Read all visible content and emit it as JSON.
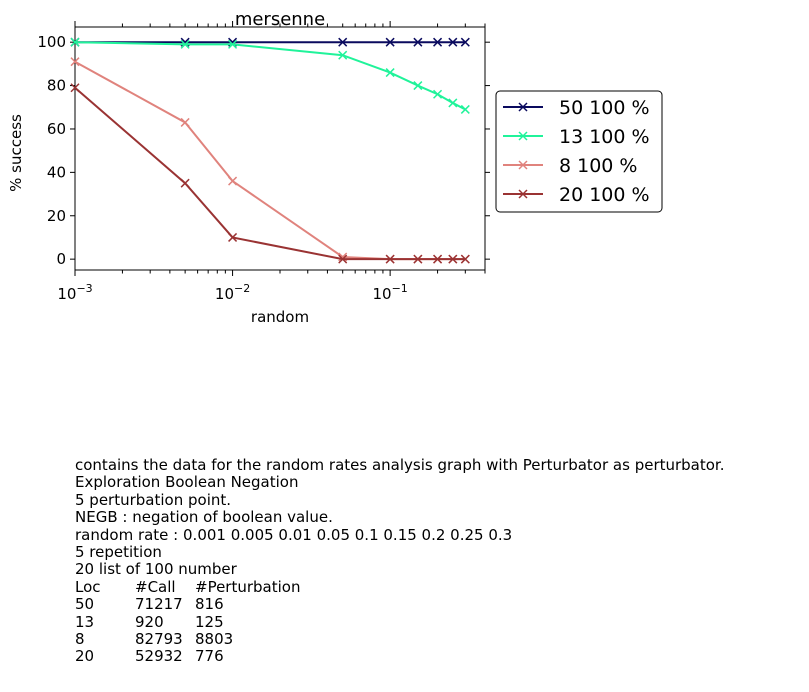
{
  "chart_data": {
    "type": "line",
    "title": "mersenne",
    "xlabel": "random",
    "ylabel": "% success",
    "xscale": "log",
    "xlim": [
      0.001,
      0.4
    ],
    "ylim": [
      -5,
      107
    ],
    "yticks": [
      0,
      20,
      40,
      60,
      80,
      100
    ],
    "xtick_labels": [
      {
        "value": 0.001,
        "base": "10",
        "exp": "−3"
      },
      {
        "value": 0.01,
        "base": "10",
        "exp": "−2"
      },
      {
        "value": 0.1,
        "base": "10",
        "exp": "−1"
      }
    ],
    "x": [
      0.001,
      0.005,
      0.01,
      0.05,
      0.1,
      0.15,
      0.2,
      0.25,
      0.3
    ],
    "series": [
      {
        "name": "50 100 %",
        "color": "#0a0a5e",
        "values": [
          100,
          100,
          100,
          100,
          100,
          100,
          100,
          100,
          100
        ]
      },
      {
        "name": "13 100 %",
        "color": "#20f39a",
        "values": [
          100,
          99,
          99,
          94,
          86,
          80,
          76,
          72,
          69
        ]
      },
      {
        "name": "8 100 %",
        "color": "#e0837d",
        "values": [
          91,
          63,
          36,
          1,
          0,
          0,
          0,
          0,
          0
        ]
      },
      {
        "name": "20 100 %",
        "color": "#9a3333",
        "values": [
          79,
          35,
          10,
          0,
          0,
          0,
          0,
          0,
          0
        ]
      }
    ],
    "legend_position": "right-outside"
  },
  "notes": {
    "lines": [
      "contains the data for the random rates analysis graph with Perturbator as perturbator.",
      "Exploration Boolean Negation",
      "5 perturbation point.",
      "NEGB : negation of boolean value.",
      "random rate : 0.001 0.005 0.01 0.05 0.1 0.15 0.2 0.25 0.3",
      "5 repetition",
      "20 list of 100 number"
    ],
    "table_header": [
      "Loc",
      "#Call",
      "#Perturbation"
    ],
    "table_rows": [
      [
        "50",
        "71217",
        "816"
      ],
      [
        "13",
        "920",
        "125"
      ],
      [
        "8",
        "82793",
        "8803"
      ],
      [
        "20",
        "52932",
        "776"
      ]
    ]
  }
}
